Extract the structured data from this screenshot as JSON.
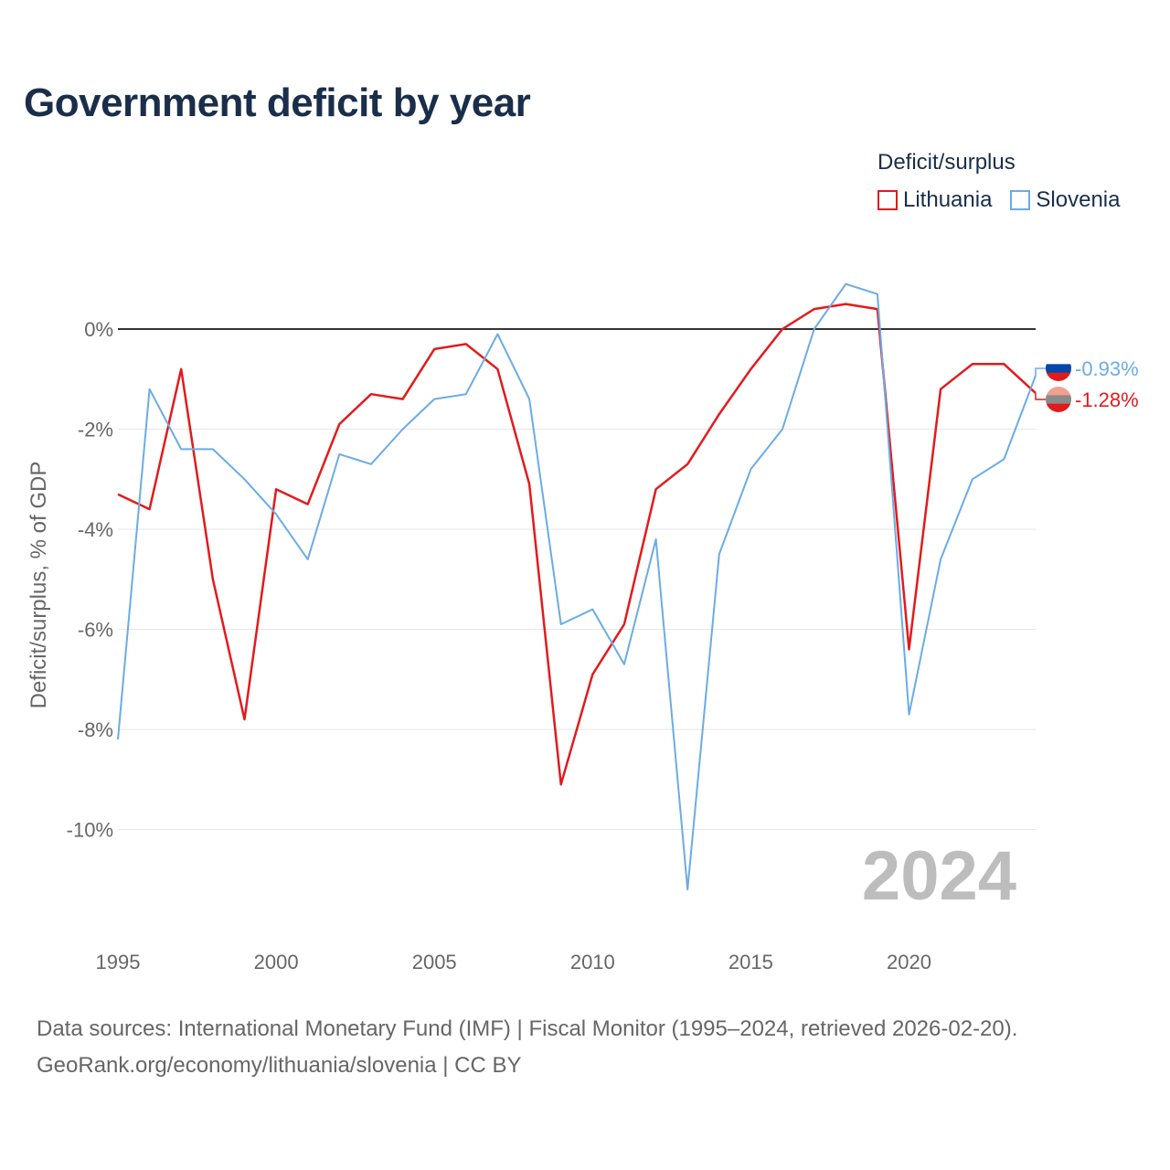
{
  "title": "Government deficit by year",
  "legend": {
    "title": "Deficit/surplus",
    "items": [
      {
        "label": "Lithuania",
        "color": "#e31a1c"
      },
      {
        "label": "Slovenia",
        "color": "#6aace6"
      }
    ]
  },
  "chart_data": {
    "type": "line",
    "title": "Government deficit by year",
    "xlabel": "",
    "ylabel": "Deficit/surplus, % of GDP",
    "xlim": [
      1995,
      2024
    ],
    "ylim": [
      -12,
      0
    ],
    "x_ticks": [
      1995,
      2000,
      2005,
      2010,
      2015,
      2020
    ],
    "y_ticks": [
      0,
      -2,
      -4,
      -6,
      -8,
      -10
    ],
    "y_tick_labels": [
      "0%",
      "-2%",
      "-4%",
      "-6%",
      "-8%",
      "-10%"
    ],
    "x": [
      1995,
      1996,
      1997,
      1998,
      1999,
      2000,
      2001,
      2002,
      2003,
      2004,
      2005,
      2006,
      2007,
      2008,
      2009,
      2010,
      2011,
      2012,
      2013,
      2014,
      2015,
      2016,
      2017,
      2018,
      2019,
      2020,
      2021,
      2022,
      2023,
      2024
    ],
    "series": [
      {
        "name": "Lithuania",
        "color": "#e31a1c",
        "values": [
          -3.3,
          -3.6,
          -0.8,
          -5.0,
          -7.8,
          -3.2,
          -3.5,
          -1.9,
          -1.3,
          -1.4,
          -0.4,
          -0.3,
          -0.8,
          -3.1,
          -9.1,
          -6.9,
          -5.9,
          -3.2,
          -2.7,
          -1.7,
          -0.8,
          0.0,
          0.4,
          0.5,
          0.4,
          -6.4,
          -1.2,
          -0.7,
          -0.7,
          -1.28
        ],
        "end_label": "-1.28%"
      },
      {
        "name": "Slovenia",
        "color": "#6aace6",
        "values": [
          -8.2,
          -1.2,
          -2.4,
          -2.4,
          -3.0,
          -3.7,
          -4.6,
          -2.5,
          -2.7,
          -2.0,
          -1.4,
          -1.3,
          -0.1,
          -1.4,
          -5.9,
          -5.6,
          -6.7,
          -4.2,
          -11.2,
          -4.5,
          -2.8,
          -2.0,
          0.0,
          0.9,
          0.7,
          -7.7,
          -4.6,
          -3.0,
          -2.6,
          -0.93
        ],
        "end_label": "-0.93%"
      }
    ],
    "year_watermark": "2024"
  },
  "footer": {
    "source_line": "Data sources: International Monetary Fund (IMF) | Fiscal Monitor (1995–2024, retrieved 2026-02-20).",
    "url_line": "GeoRank.org/economy/lithuania/slovenia | CC BY"
  }
}
